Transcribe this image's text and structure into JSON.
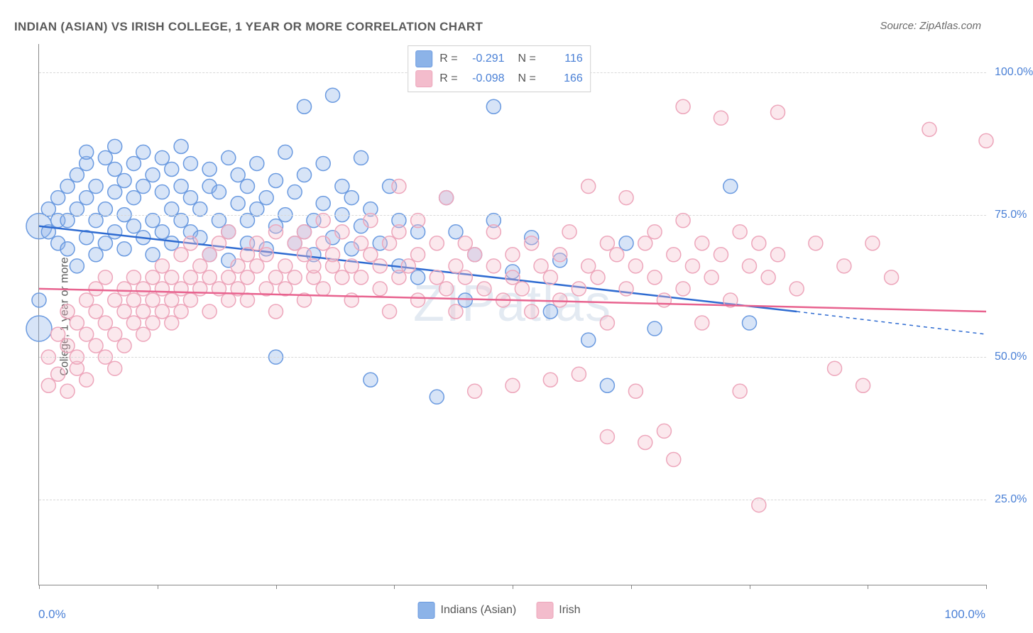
{
  "title": "INDIAN (ASIAN) VS IRISH COLLEGE, 1 YEAR OR MORE CORRELATION CHART",
  "source": "Source: ZipAtlas.com",
  "watermark": "ZIPatlas",
  "chart": {
    "type": "scatter",
    "xlim": [
      0,
      100
    ],
    "ylim": [
      10,
      105
    ],
    "yticks": [
      25,
      50,
      75,
      100
    ],
    "ytick_labels": [
      "25.0%",
      "50.0%",
      "75.0%",
      "100.0%"
    ],
    "xticks": [
      0,
      12.5,
      25,
      37.5,
      50,
      62.5,
      75,
      87.5,
      100
    ],
    "xaxis_min_label": "0.0%",
    "xaxis_max_label": "100.0%",
    "yaxis_title": "College, 1 year or more",
    "background_color": "#ffffff",
    "grid_color": "#d8d8d8",
    "axis_color": "#888888",
    "marker_radius": 10,
    "marker_radius_large": 18,
    "marker_stroke_width": 1.5,
    "marker_fill_opacity": 0.35,
    "line_width": 2.5,
    "series": [
      {
        "name": "Indians (Asian)",
        "color": "#8cb3e8",
        "stroke": "#6a9ae0",
        "line_color": "#2e6bd1",
        "R": "-0.291",
        "N": "116",
        "trend": {
          "x1": 0,
          "y1": 73,
          "x2": 80,
          "y2": 58,
          "dash_x2": 100,
          "dash_y2": 54
        },
        "points": [
          [
            0,
            73
          ],
          [
            0,
            55
          ],
          [
            0,
            60
          ],
          [
            1,
            72
          ],
          [
            1,
            76
          ],
          [
            2,
            74
          ],
          [
            2,
            70
          ],
          [
            2,
            78
          ],
          [
            3,
            80
          ],
          [
            3,
            69
          ],
          [
            3,
            74
          ],
          [
            4,
            82
          ],
          [
            4,
            66
          ],
          [
            4,
            76
          ],
          [
            5,
            84
          ],
          [
            5,
            71
          ],
          [
            5,
            78
          ],
          [
            5,
            86
          ],
          [
            6,
            74
          ],
          [
            6,
            68
          ],
          [
            6,
            80
          ],
          [
            7,
            85
          ],
          [
            7,
            76
          ],
          [
            7,
            70
          ],
          [
            8,
            79
          ],
          [
            8,
            83
          ],
          [
            8,
            72
          ],
          [
            8,
            87
          ],
          [
            9,
            75
          ],
          [
            9,
            81
          ],
          [
            9,
            69
          ],
          [
            10,
            84
          ],
          [
            10,
            73
          ],
          [
            10,
            78
          ],
          [
            11,
            86
          ],
          [
            11,
            71
          ],
          [
            11,
            80
          ],
          [
            12,
            74
          ],
          [
            12,
            82
          ],
          [
            12,
            68
          ],
          [
            13,
            79
          ],
          [
            13,
            85
          ],
          [
            13,
            72
          ],
          [
            14,
            76
          ],
          [
            14,
            83
          ],
          [
            14,
            70
          ],
          [
            15,
            80
          ],
          [
            15,
            74
          ],
          [
            15,
            87
          ],
          [
            16,
            72
          ],
          [
            16,
            78
          ],
          [
            16,
            84
          ],
          [
            17,
            71
          ],
          [
            17,
            76
          ],
          [
            18,
            80
          ],
          [
            18,
            68
          ],
          [
            18,
            83
          ],
          [
            19,
            74
          ],
          [
            19,
            79
          ],
          [
            20,
            72
          ],
          [
            20,
            85
          ],
          [
            20,
            67
          ],
          [
            21,
            77
          ],
          [
            21,
            82
          ],
          [
            22,
            70
          ],
          [
            22,
            74
          ],
          [
            22,
            80
          ],
          [
            23,
            76
          ],
          [
            23,
            84
          ],
          [
            24,
            69
          ],
          [
            24,
            78
          ],
          [
            25,
            73
          ],
          [
            25,
            81
          ],
          [
            25,
            50
          ],
          [
            26,
            75
          ],
          [
            26,
            86
          ],
          [
            27,
            70
          ],
          [
            27,
            79
          ],
          [
            28,
            72
          ],
          [
            28,
            82
          ],
          [
            28,
            94
          ],
          [
            29,
            74
          ],
          [
            29,
            68
          ],
          [
            30,
            77
          ],
          [
            30,
            84
          ],
          [
            31,
            71
          ],
          [
            31,
            96
          ],
          [
            32,
            75
          ],
          [
            32,
            80
          ],
          [
            33,
            69
          ],
          [
            33,
            78
          ],
          [
            34,
            73
          ],
          [
            34,
            85
          ],
          [
            35,
            46
          ],
          [
            35,
            76
          ],
          [
            36,
            70
          ],
          [
            37,
            80
          ],
          [
            38,
            66
          ],
          [
            38,
            74
          ],
          [
            40,
            72
          ],
          [
            40,
            64
          ],
          [
            42,
            43
          ],
          [
            43,
            78
          ],
          [
            44,
            72
          ],
          [
            45,
            60
          ],
          [
            46,
            68
          ],
          [
            48,
            74
          ],
          [
            48,
            94
          ],
          [
            50,
            65
          ],
          [
            52,
            71
          ],
          [
            54,
            58
          ],
          [
            55,
            67
          ],
          [
            58,
            53
          ],
          [
            60,
            45
          ],
          [
            62,
            70
          ],
          [
            65,
            55
          ],
          [
            73,
            80
          ],
          [
            75,
            56
          ]
        ]
      },
      {
        "name": "Irish",
        "color": "#f3bccc",
        "stroke": "#eda6bb",
        "line_color": "#e8638f",
        "R": "-0.098",
        "N": "166",
        "trend": {
          "x1": 0,
          "y1": 62,
          "x2": 100,
          "y2": 58
        },
        "points": [
          [
            1,
            45
          ],
          [
            1,
            50
          ],
          [
            2,
            47
          ],
          [
            2,
            54
          ],
          [
            3,
            44
          ],
          [
            3,
            52
          ],
          [
            3,
            58
          ],
          [
            4,
            48
          ],
          [
            4,
            56
          ],
          [
            4,
            50
          ],
          [
            5,
            54
          ],
          [
            5,
            60
          ],
          [
            5,
            46
          ],
          [
            6,
            58
          ],
          [
            6,
            52
          ],
          [
            6,
            62
          ],
          [
            7,
            56
          ],
          [
            7,
            50
          ],
          [
            7,
            64
          ],
          [
            8,
            60
          ],
          [
            8,
            54
          ],
          [
            8,
            48
          ],
          [
            9,
            62
          ],
          [
            9,
            58
          ],
          [
            9,
            52
          ],
          [
            10,
            64
          ],
          [
            10,
            56
          ],
          [
            10,
            60
          ],
          [
            11,
            58
          ],
          [
            11,
            62
          ],
          [
            11,
            54
          ],
          [
            12,
            60
          ],
          [
            12,
            64
          ],
          [
            12,
            56
          ],
          [
            13,
            62
          ],
          [
            13,
            58
          ],
          [
            13,
            66
          ],
          [
            14,
            60
          ],
          [
            14,
            64
          ],
          [
            14,
            56
          ],
          [
            15,
            62
          ],
          [
            15,
            68
          ],
          [
            15,
            58
          ],
          [
            16,
            64
          ],
          [
            16,
            60
          ],
          [
            16,
            70
          ],
          [
            17,
            62
          ],
          [
            17,
            66
          ],
          [
            18,
            64
          ],
          [
            18,
            58
          ],
          [
            18,
            68
          ],
          [
            19,
            62
          ],
          [
            19,
            70
          ],
          [
            20,
            64
          ],
          [
            20,
            60
          ],
          [
            20,
            72
          ],
          [
            21,
            66
          ],
          [
            21,
            62
          ],
          [
            22,
            68
          ],
          [
            22,
            64
          ],
          [
            22,
            60
          ],
          [
            23,
            66
          ],
          [
            23,
            70
          ],
          [
            24,
            62
          ],
          [
            24,
            68
          ],
          [
            25,
            64
          ],
          [
            25,
            72
          ],
          [
            25,
            58
          ],
          [
            26,
            66
          ],
          [
            26,
            62
          ],
          [
            27,
            70
          ],
          [
            27,
            64
          ],
          [
            28,
            68
          ],
          [
            28,
            60
          ],
          [
            28,
            72
          ],
          [
            29,
            64
          ],
          [
            29,
            66
          ],
          [
            30,
            70
          ],
          [
            30,
            62
          ],
          [
            30,
            74
          ],
          [
            31,
            66
          ],
          [
            31,
            68
          ],
          [
            32,
            64
          ],
          [
            32,
            72
          ],
          [
            33,
            66
          ],
          [
            33,
            60
          ],
          [
            34,
            70
          ],
          [
            34,
            64
          ],
          [
            35,
            68
          ],
          [
            35,
            74
          ],
          [
            36,
            62
          ],
          [
            36,
            66
          ],
          [
            37,
            70
          ],
          [
            37,
            58
          ],
          [
            38,
            64
          ],
          [
            38,
            72
          ],
          [
            38,
            80
          ],
          [
            39,
            66
          ],
          [
            40,
            68
          ],
          [
            40,
            60
          ],
          [
            40,
            74
          ],
          [
            42,
            64
          ],
          [
            42,
            70
          ],
          [
            43,
            62
          ],
          [
            43,
            78
          ],
          [
            44,
            66
          ],
          [
            44,
            58
          ],
          [
            45,
            70
          ],
          [
            45,
            64
          ],
          [
            46,
            68
          ],
          [
            46,
            44
          ],
          [
            47,
            62
          ],
          [
            48,
            66
          ],
          [
            48,
            72
          ],
          [
            49,
            60
          ],
          [
            50,
            64
          ],
          [
            50,
            68
          ],
          [
            50,
            45
          ],
          [
            51,
            62
          ],
          [
            52,
            70
          ],
          [
            52,
            58
          ],
          [
            53,
            66
          ],
          [
            54,
            64
          ],
          [
            54,
            46
          ],
          [
            55,
            68
          ],
          [
            55,
            60
          ],
          [
            56,
            72
          ],
          [
            57,
            62
          ],
          [
            57,
            47
          ],
          [
            58,
            66
          ],
          [
            58,
            80
          ],
          [
            59,
            64
          ],
          [
            60,
            70
          ],
          [
            60,
            56
          ],
          [
            60,
            36
          ],
          [
            61,
            68
          ],
          [
            62,
            62
          ],
          [
            62,
            78
          ],
          [
            63,
            66
          ],
          [
            63,
            44
          ],
          [
            64,
            70
          ],
          [
            64,
            35
          ],
          [
            65,
            64
          ],
          [
            65,
            72
          ],
          [
            66,
            60
          ],
          [
            66,
            37
          ],
          [
            67,
            68
          ],
          [
            67,
            32
          ],
          [
            68,
            62
          ],
          [
            68,
            74
          ],
          [
            68,
            94
          ],
          [
            69,
            66
          ],
          [
            70,
            70
          ],
          [
            70,
            56
          ],
          [
            71,
            64
          ],
          [
            72,
            68
          ],
          [
            72,
            92
          ],
          [
            73,
            60
          ],
          [
            74,
            72
          ],
          [
            74,
            44
          ],
          [
            75,
            66
          ],
          [
            76,
            70
          ],
          [
            76,
            24
          ],
          [
            77,
            64
          ],
          [
            78,
            68
          ],
          [
            78,
            93
          ],
          [
            80,
            62
          ],
          [
            82,
            70
          ],
          [
            84,
            48
          ],
          [
            85,
            66
          ],
          [
            87,
            45
          ],
          [
            88,
            70
          ],
          [
            90,
            64
          ],
          [
            94,
            90
          ],
          [
            100,
            88
          ]
        ]
      }
    ]
  },
  "legend_bottom": [
    {
      "label": "Indians (Asian)",
      "fill": "#8cb3e8",
      "stroke": "#6a9ae0"
    },
    {
      "label": "Irish",
      "fill": "#f3bccc",
      "stroke": "#eda6bb"
    }
  ]
}
